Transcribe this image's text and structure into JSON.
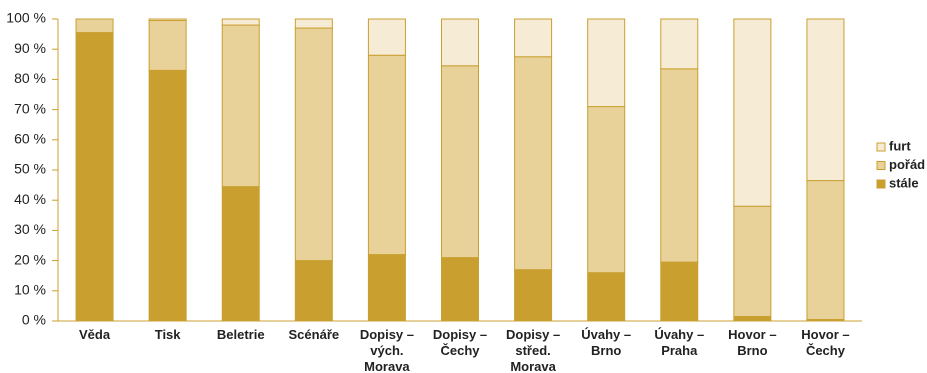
{
  "chart_data": {
    "type": "stacked_bar",
    "categories": [
      "Věda",
      "Tisk",
      "Beletrie",
      "Scénáře",
      "Dopisy – vých. Morava",
      "Dopisy – Čechy",
      "Dopisy – střed. Morava",
      "Úvahy – Brno",
      "Úvahy – Praha",
      "Hovor – Brno",
      "Hovor – Čechy"
    ],
    "series": [
      {
        "name": "stále",
        "color": "#c9a030",
        "values": [
          95.5,
          83,
          44.5,
          20,
          22,
          21,
          17,
          16,
          19.5,
          1.5,
          0.5
        ]
      },
      {
        "name": "pořád",
        "color": "#e8d29a",
        "values": [
          4.5,
          16.5,
          53.5,
          77,
          66,
          63.5,
          70.5,
          55,
          64,
          36.5,
          46
        ]
      },
      {
        "name": "furt",
        "color": "#f6ecd6",
        "values": [
          0,
          0.5,
          2,
          3,
          12,
          15.5,
          12.5,
          29,
          16.5,
          62,
          53.5
        ]
      }
    ],
    "ylim": [
      0,
      100
    ],
    "yticks": [
      {
        "value": 0,
        "label": "0 %"
      },
      {
        "value": 10,
        "label": "10 %"
      },
      {
        "value": 20,
        "label": "20 %"
      },
      {
        "value": 30,
        "label": "30 %"
      },
      {
        "value": 40,
        "label": "40 %"
      },
      {
        "value": 50,
        "label": "50 %"
      },
      {
        "value": 60,
        "label": "60 %"
      },
      {
        "value": 70,
        "label": "70 %"
      },
      {
        "value": 80,
        "label": "80 %"
      },
      {
        "value": 90,
        "label": "90 %"
      },
      {
        "value": 100,
        "label": "100 %"
      }
    ],
    "legend": "right"
  }
}
